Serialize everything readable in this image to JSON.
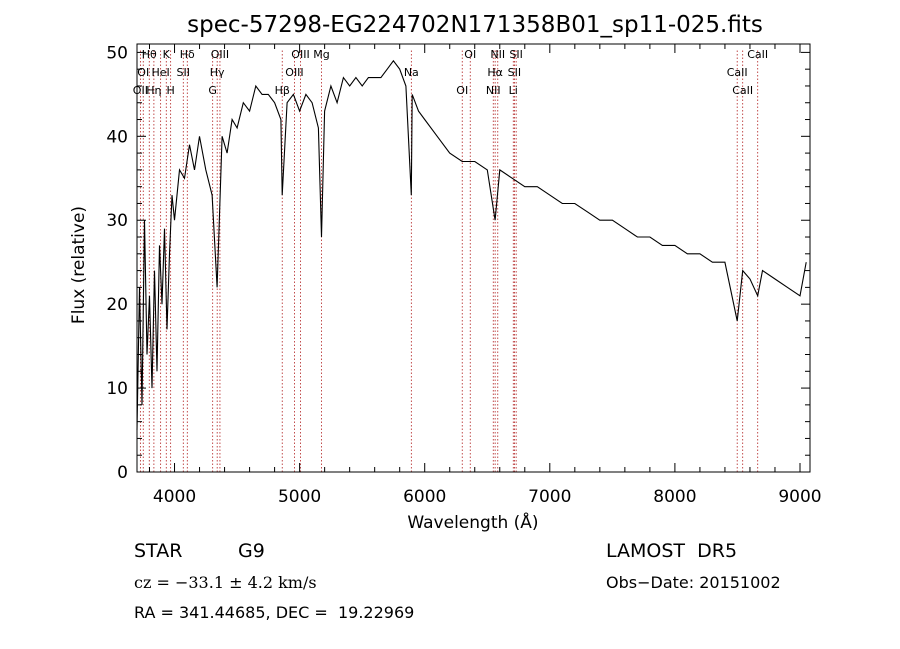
{
  "chart_data": {
    "type": "line",
    "title": "spec-57298-EG224702N171358B01_sp11-025.fits",
    "xlabel": "Wavelength (Å)",
    "ylabel": "Flux (relative)",
    "xlim": [
      3700,
      9080
    ],
    "ylim": [
      0,
      51
    ],
    "x_ticks": [
      4000,
      5000,
      6000,
      7000,
      8000,
      9000
    ],
    "y_ticks": [
      0,
      10,
      20,
      30,
      40,
      50
    ],
    "grid": false,
    "series": [
      {
        "x": [
          3700,
          3720,
          3740,
          3760,
          3780,
          3800,
          3820,
          3840,
          3860,
          3880,
          3900,
          3920,
          3940,
          3960,
          3980,
          4000,
          4040,
          4080,
          4120,
          4160,
          4200,
          4250,
          4300,
          4340,
          4380,
          4420,
          4460,
          4500,
          4550,
          4600,
          4650,
          4700,
          4750,
          4800,
          4850,
          4861,
          4900,
          4950,
          5000,
          5050,
          5100,
          5150,
          5175,
          5200,
          5250,
          5300,
          5350,
          5400,
          5450,
          5500,
          5550,
          5600,
          5650,
          5700,
          5750,
          5800,
          5850,
          5893,
          5900,
          5950,
          6000,
          6100,
          6200,
          6300,
          6400,
          6500,
          6563,
          6600,
          6700,
          6800,
          6900,
          7000,
          7100,
          7200,
          7300,
          7400,
          7500,
          7600,
          7700,
          7800,
          7900,
          8000,
          8100,
          8200,
          8300,
          8400,
          8498,
          8542,
          8600,
          8662,
          8700,
          8800,
          8900,
          9000,
          9050
        ],
        "y": [
          5,
          22,
          8,
          30,
          14,
          21,
          10,
          24,
          12,
          27,
          20,
          29,
          17,
          26,
          33,
          30,
          36,
          35,
          39,
          36,
          40,
          36,
          33,
          22,
          40,
          38,
          42,
          41,
          44,
          43,
          46,
          45,
          45,
          44,
          42,
          33,
          44,
          45,
          43,
          45,
          44,
          41,
          28,
          43,
          46,
          44,
          47,
          46,
          47,
          46,
          47,
          47,
          47,
          48,
          49,
          48,
          46,
          33,
          45,
          43,
          42,
          40,
          38,
          37,
          37,
          36,
          30,
          36,
          35,
          34,
          34,
          33,
          32,
          32,
          31,
          30,
          30,
          29,
          28,
          28,
          27,
          27,
          26,
          26,
          25,
          25,
          18,
          24,
          23,
          21,
          24,
          23,
          22,
          21,
          25
        ]
      }
    ],
    "spectral_lines": [
      {
        "label": "Hθ",
        "wl": 3798
      },
      {
        "label": "OI",
        "wl": 3750
      },
      {
        "label": "OII",
        "wl": 3727
      },
      {
        "label": "K",
        "wl": 3934
      },
      {
        "label": "HeI",
        "wl": 3889
      },
      {
        "label": "Hη",
        "wl": 3835
      },
      {
        "label": "Hδ",
        "wl": 4102
      },
      {
        "label": "SII",
        "wl": 4070
      },
      {
        "label": "H",
        "wl": 3969
      },
      {
        "label": "OIII",
        "wl": 4363
      },
      {
        "label": "Hγ",
        "wl": 4341
      },
      {
        "label": "G",
        "wl": 4305
      },
      {
        "label": "OIII",
        "wl": 5007
      },
      {
        "label": "OIII",
        "wl": 4959
      },
      {
        "label": "Hβ",
        "wl": 4861
      },
      {
        "label": "Mg",
        "wl": 5175
      },
      {
        "label": "Na",
        "wl": 5893
      },
      {
        "label": "OI",
        "wl": 6300
      },
      {
        "label": "OI",
        "wl": 6364
      },
      {
        "label": "Hα",
        "wl": 6563
      },
      {
        "label": "NII",
        "wl": 6548
      },
      {
        "label": "NII",
        "wl": 6584
      },
      {
        "label": "SII",
        "wl": 6717
      },
      {
        "label": "Li",
        "wl": 6708
      },
      {
        "label": "SII",
        "wl": 6731
      },
      {
        "label": "CaII",
        "wl": 8498
      },
      {
        "label": "CaII",
        "wl": 8542
      },
      {
        "label": "CaII",
        "wl": 8662
      }
    ]
  },
  "info": {
    "class": "STAR",
    "subclass": "G9",
    "survey": "LAMOST  DR5",
    "cz": "cz = −33.1 ± 4.2 km/s",
    "obs_date": "Obs−Date: 20151002",
    "coords": "RA = 341.44685, DEC =  19.22969"
  },
  "colors": {
    "spectrum": "#000000",
    "line_marker": "#b22222",
    "background": "#ffffff"
  }
}
